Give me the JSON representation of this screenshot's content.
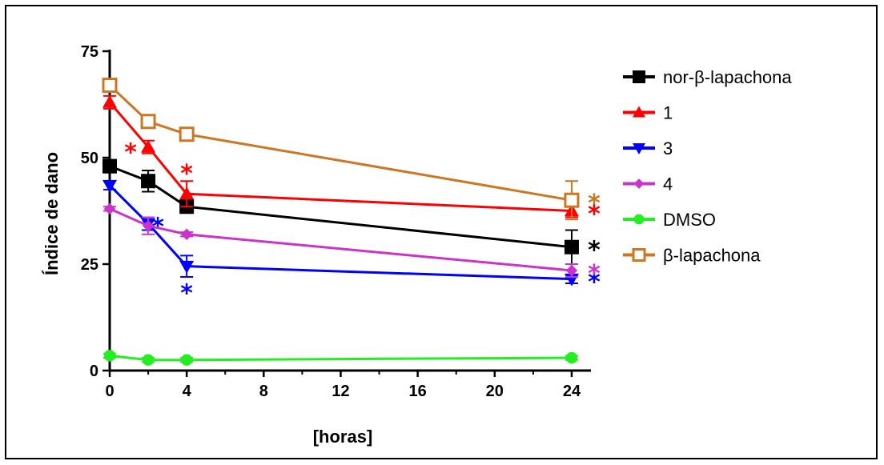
{
  "chart_data": {
    "type": "line",
    "xlabel": "[horas]",
    "ylabel": "Índice de dano",
    "xlim": [
      0,
      25
    ],
    "ylim": [
      0,
      75
    ],
    "xticks": [
      "0",
      "4",
      "8",
      "12",
      "16",
      "20",
      "24"
    ],
    "xtick_values": [
      0,
      4,
      8,
      12,
      16,
      20,
      24
    ],
    "yticks": [
      "0",
      "25",
      "50",
      "75"
    ],
    "ytick_values": [
      0,
      25,
      50,
      75
    ],
    "grid": false,
    "legend_position": "right",
    "significance_marker": "*",
    "series": [
      {
        "name": "nor-β-lapachona",
        "color": "#000000",
        "marker": "square-filled",
        "x": [
          0,
          2,
          4,
          24
        ],
        "y": [
          48,
          44.5,
          38.5,
          29
        ],
        "err": [
          1.5,
          2.5,
          1.5,
          4
        ],
        "stars": [
          {
            "x": 24,
            "y": 29,
            "label": "*"
          }
        ]
      },
      {
        "name": "1",
        "color": "#ff0000",
        "marker": "triangle-up",
        "x": [
          0,
          2,
          4,
          24
        ],
        "y": [
          63,
          52.5,
          41.5,
          37.5
        ],
        "err": [
          1.5,
          1.5,
          3,
          1.5
        ],
        "stars": [
          {
            "x": 24,
            "y": 37.5,
            "label": "*"
          },
          {
            "x": 4,
            "y": 47,
            "label": "*"
          },
          {
            "x": 2,
            "y": 52,
            "label": "*"
          }
        ]
      },
      {
        "name": "3",
        "color": "#0000ff",
        "marker": "triangle-down",
        "x": [
          0,
          2,
          4,
          24
        ],
        "y": [
          43.5,
          34.5,
          24.5,
          21.5
        ],
        "err": [
          1,
          1.5,
          2.5,
          1
        ],
        "stars": [
          {
            "x": 24,
            "y": 21.5,
            "label": "*"
          },
          {
            "x": 4,
            "y": 24.5,
            "label": "*"
          },
          {
            "x": 2,
            "y": 34.5,
            "label": "*"
          }
        ]
      },
      {
        "name": "4",
        "color": "#cc33cc",
        "marker": "diamond",
        "x": [
          0,
          2,
          4,
          24
        ],
        "y": [
          38,
          34,
          32,
          23.5
        ],
        "err": [
          0.5,
          2,
          0.5,
          1.5
        ],
        "stars": [
          {
            "x": 24,
            "y": 23.5,
            "label": "*"
          }
        ]
      },
      {
        "name": "DMSO",
        "color": "#22ee22",
        "marker": "circle",
        "x": [
          0,
          2,
          4,
          24
        ],
        "y": [
          3.5,
          2.5,
          2.5,
          3
        ],
        "err": [
          0.5,
          0.5,
          0.5,
          0.5
        ],
        "stars": []
      },
      {
        "name": "β-lapachona",
        "color": "#cc7722",
        "marker": "square-open",
        "x": [
          0,
          2,
          4,
          24
        ],
        "y": [
          67,
          58.5,
          55.5,
          40
        ],
        "err": [
          1,
          1,
          1,
          4.5
        ],
        "stars": [
          {
            "x": 24,
            "y": 40,
            "label": "*"
          }
        ]
      }
    ]
  }
}
